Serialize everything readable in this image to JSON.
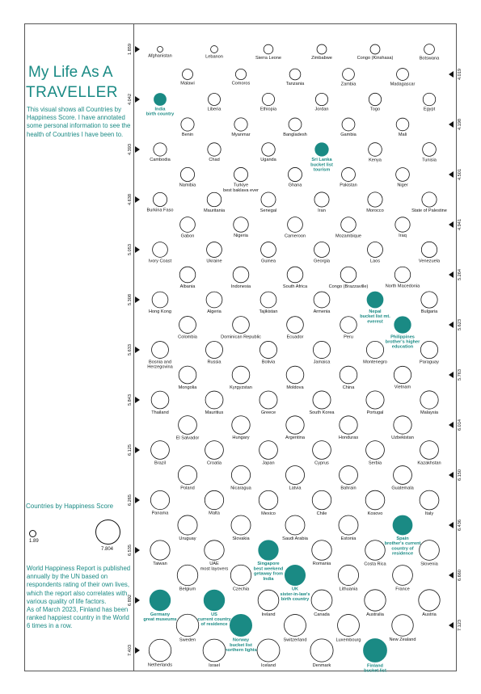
{
  "title": {
    "line1": "My Life As A",
    "line2": "TRAVELLER"
  },
  "intro": "This visual shows all Countries by Happiness Score. I have annotated some personal information to see the health of Countries I have been to.",
  "legend": {
    "title": "Countries by Happiness Score",
    "min_label": "1.89",
    "max_label": "7.804"
  },
  "footer": "World Happiness Report is published annually by the UN based on respondents rating of their own lives, which the report also  correlates with various quality of life factors.\nAs of March 2023, Finland has been ranked happiest country in the World 6 times in a row.",
  "colors": {
    "highlight": "#1a8a84",
    "outline": "#111111"
  },
  "chart_data": {
    "type": "scatter",
    "title": "Countries by Happiness Score",
    "size_range": [
      1.89,
      7.804
    ],
    "left_axis_ticks": [
      "1.859",
      "4.042",
      "4.393",
      "4.638",
      "5.053",
      "5.308",
      "5.633",
      "5.843",
      "6.125",
      "6.265",
      "6.535",
      "6.892",
      "7.403"
    ],
    "right_axis_ticks": [
      "4.019",
      "4.198",
      "4.501",
      "4.941",
      "5.264",
      "5.623",
      "5.763",
      "6.014",
      "6.150",
      "6.436",
      "6.660",
      "7.123"
    ],
    "rows": [
      [
        {
          "name": "Afghanistan",
          "score": 1.86
        },
        {
          "name": "Lebanon",
          "score": 2.39
        },
        {
          "name": "Sierra Leone",
          "score": 3.14
        },
        {
          "name": "Zimbabwe",
          "score": 3.2
        },
        {
          "name": "Congo (Kinshasa)",
          "score": 3.21
        },
        {
          "name": "Botswana",
          "score": 3.44
        }
      ],
      [
        {
          "name": "Malawi",
          "score": 3.5
        },
        {
          "name": "Comoros",
          "score": 3.55
        },
        {
          "name": "Tanzania",
          "score": 3.69
        },
        {
          "name": "Zambia",
          "score": 3.98
        },
        {
          "name": "Madagascar",
          "score": 4.02
        }
      ],
      [
        {
          "name": "India",
          "score": 4.04,
          "note": "birth country",
          "highlight": true
        },
        {
          "name": "Liberia",
          "score": 4.04
        },
        {
          "name": "Ethiopia",
          "score": 4.09
        },
        {
          "name": "Jordan",
          "score": 4.12
        },
        {
          "name": "Togo",
          "score": 4.14
        },
        {
          "name": "Egypt",
          "score": 4.17
        }
      ],
      [
        {
          "name": "Benin",
          "score": 4.37
        },
        {
          "name": "Myanmar",
          "score": 4.39
        },
        {
          "name": "Bangladesh",
          "score": 4.28
        },
        {
          "name": "Gambia",
          "score": 4.28
        },
        {
          "name": "Mali",
          "score": 4.2
        }
      ],
      [
        {
          "name": "Cambodia",
          "score": 4.39
        },
        {
          "name": "Chad",
          "score": 4.4
        },
        {
          "name": "Uganda",
          "score": 4.43
        },
        {
          "name": "Sri Lanka",
          "score": 4.44,
          "note": "bucket list tourism",
          "highlight": true
        },
        {
          "name": "Kenya",
          "score": 4.49
        },
        {
          "name": "Tunisia",
          "score": 4.5
        }
      ],
      [
        {
          "name": "Namibia",
          "score": 4.63
        },
        {
          "name": "Turkiye",
          "score": 4.61,
          "note": "best baklava ever"
        },
        {
          "name": "Ghana",
          "score": 4.6
        },
        {
          "name": "Pakistan",
          "score": 4.55
        },
        {
          "name": "Niger",
          "score": 4.5
        }
      ],
      [
        {
          "name": "Burkina Faso",
          "score": 4.64
        },
        {
          "name": "Mauritania",
          "score": 4.72
        },
        {
          "name": "Senegal",
          "score": 4.86
        },
        {
          "name": "Iran",
          "score": 4.88
        },
        {
          "name": "Morocco",
          "score": 4.9
        },
        {
          "name": "State of Palestine",
          "score": 4.91
        }
      ],
      [
        {
          "name": "Gabon",
          "score": 5.04
        },
        {
          "name": "Nigeria",
          "score": 4.98
        },
        {
          "name": "Cameroon",
          "score": 5.05
        },
        {
          "name": "Mozambique",
          "score": 5.0
        },
        {
          "name": "Iraq",
          "score": 4.94
        }
      ],
      [
        {
          "name": "Ivory Coast",
          "score": 5.05
        },
        {
          "name": "Ukraine",
          "score": 5.07
        },
        {
          "name": "Guinea",
          "score": 5.07
        },
        {
          "name": "Georgia",
          "score": 5.11
        },
        {
          "name": "Laos",
          "score": 5.11
        },
        {
          "name": "Venezuela",
          "score": 5.21
        }
      ],
      [
        {
          "name": "Albania",
          "score": 5.28
        },
        {
          "name": "Indonesia",
          "score": 5.28
        },
        {
          "name": "South Africa",
          "score": 5.28
        },
        {
          "name": "Congo (Brazzaville)",
          "score": 5.27
        },
        {
          "name": "North Macedonia",
          "score": 5.25
        }
      ],
      [
        {
          "name": "Hong Kong",
          "score": 5.31
        },
        {
          "name": "Algeria",
          "score": 5.33
        },
        {
          "name": "Tajikistan",
          "score": 5.33
        },
        {
          "name": "Armenia",
          "score": 5.34
        },
        {
          "name": "Nepal",
          "score": 5.36,
          "note": "bucket list mt. everest",
          "highlight": true
        },
        {
          "name": "Bulgaria",
          "score": 5.47
        }
      ],
      [
        {
          "name": "Colombia",
          "score": 5.63
        },
        {
          "name": "Dominican Republic",
          "score": 5.57
        },
        {
          "name": "Ecuador",
          "score": 5.56
        },
        {
          "name": "Peru",
          "score": 5.53
        },
        {
          "name": "Philippines",
          "score": 5.52,
          "note": "brother's higher education",
          "highlight": true
        }
      ],
      [
        {
          "name": "Bosnia and Herzegovina",
          "score": 5.63
        },
        {
          "name": "Russia",
          "score": 5.66
        },
        {
          "name": "Bolivia",
          "score": 5.68
        },
        {
          "name": "Jamaica",
          "score": 5.7
        },
        {
          "name": "Montenegro",
          "score": 5.72
        },
        {
          "name": "Paraguay",
          "score": 5.74
        }
      ],
      [
        {
          "name": "Mongolia",
          "score": 5.84
        },
        {
          "name": "Kyrgyzstan",
          "score": 5.83
        },
        {
          "name": "Moldova",
          "score": 5.82
        },
        {
          "name": "China",
          "score": 5.82
        },
        {
          "name": "Vietnam",
          "score": 5.76
        }
      ],
      [
        {
          "name": "Thailand",
          "score": 5.84
        },
        {
          "name": "Mauritius",
          "score": 5.9
        },
        {
          "name": "Greece",
          "score": 5.93
        },
        {
          "name": "South Korea",
          "score": 5.95
        },
        {
          "name": "Portugal",
          "score": 5.97
        },
        {
          "name": "Malaysia",
          "score": 6.01
        }
      ],
      [
        {
          "name": "El Salvador",
          "score": 6.12
        },
        {
          "name": "Hungary",
          "score": 6.04
        },
        {
          "name": "Argentina",
          "score": 6.02
        },
        {
          "name": "Honduras",
          "score": 6.02
        },
        {
          "name": "Uzbekistan",
          "score": 6.01
        }
      ],
      [
        {
          "name": "Brazil",
          "score": 6.13
        },
        {
          "name": "Croatia",
          "score": 6.13
        },
        {
          "name": "Japan",
          "score": 6.13
        },
        {
          "name": "Cyprus",
          "score": 6.13
        },
        {
          "name": "Serbia",
          "score": 6.14
        },
        {
          "name": "Kazakhstan",
          "score": 6.14
        }
      ],
      [
        {
          "name": "Poland",
          "score": 6.26
        },
        {
          "name": "Nicaragua",
          "score": 6.26
        },
        {
          "name": "Latvia",
          "score": 6.21
        },
        {
          "name": "Bahrain",
          "score": 6.17
        },
        {
          "name": "Guatemala",
          "score": 6.15
        }
      ],
      [
        {
          "name": "Panama",
          "score": 6.27
        },
        {
          "name": "Malta",
          "score": 6.3
        },
        {
          "name": "Mexico",
          "score": 6.33
        },
        {
          "name": "Chile",
          "score": 6.33
        },
        {
          "name": "Kosovo",
          "score": 6.37
        },
        {
          "name": "Italy",
          "score": 6.41
        }
      ],
      [
        {
          "name": "Uruguay",
          "score": 6.49
        },
        {
          "name": "Slovakia",
          "score": 6.47
        },
        {
          "name": "Saudi Arabia",
          "score": 6.46
        },
        {
          "name": "Estonia",
          "score": 6.46
        },
        {
          "name": "Spain",
          "score": 6.44,
          "note": "brother's current country of residence",
          "highlight": true
        }
      ],
      [
        {
          "name": "Taiwan",
          "score": 6.54
        },
        {
          "name": "UAE",
          "score": 6.57,
          "note": "most layovers"
        },
        {
          "name": "Singapore",
          "score": 6.59,
          "note": "best weekend getaway from India",
          "highlight": true
        },
        {
          "name": "Romania",
          "score": 6.59
        },
        {
          "name": "Costa Rica",
          "score": 6.61
        },
        {
          "name": "Slovenia",
          "score": 6.65
        }
      ],
      [
        {
          "name": "Belgium",
          "score": 6.86
        },
        {
          "name": "Czechia",
          "score": 6.85
        },
        {
          "name": "UK",
          "score": 6.8,
          "note": "sister-in-law's birth country",
          "highlight": true
        },
        {
          "name": "Lithuania",
          "score": 6.76
        },
        {
          "name": "France",
          "score": 6.66
        }
      ],
      [
        {
          "name": "Germany",
          "score": 6.89,
          "note": "great museums",
          "highlight": true
        },
        {
          "name": "US",
          "score": 6.89,
          "note": "current country of residence",
          "highlight": true
        },
        {
          "name": "Ireland",
          "score": 6.91
        },
        {
          "name": "Canada",
          "score": 6.96
        },
        {
          "name": "Australia",
          "score": 7.1
        },
        {
          "name": "Austria",
          "score": 7.1
        }
      ],
      [
        {
          "name": "Sweden",
          "score": 7.4
        },
        {
          "name": "Norway",
          "score": 7.32,
          "note": "bucket list northern lights",
          "highlight": true
        },
        {
          "name": "Switzerland",
          "score": 7.24
        },
        {
          "name": "Luxembourg",
          "score": 7.23
        },
        {
          "name": "New Zealand",
          "score": 7.12
        }
      ],
      [
        {
          "name": "Netherlands",
          "score": 7.4
        },
        {
          "name": "Israel",
          "score": 7.47
        },
        {
          "name": "Iceland",
          "score": 7.53
        },
        {
          "name": "Denmark",
          "score": 7.59
        },
        {
          "name": "Finland",
          "score": 7.8,
          "note": "bucket list",
          "highlight": true
        }
      ]
    ]
  }
}
